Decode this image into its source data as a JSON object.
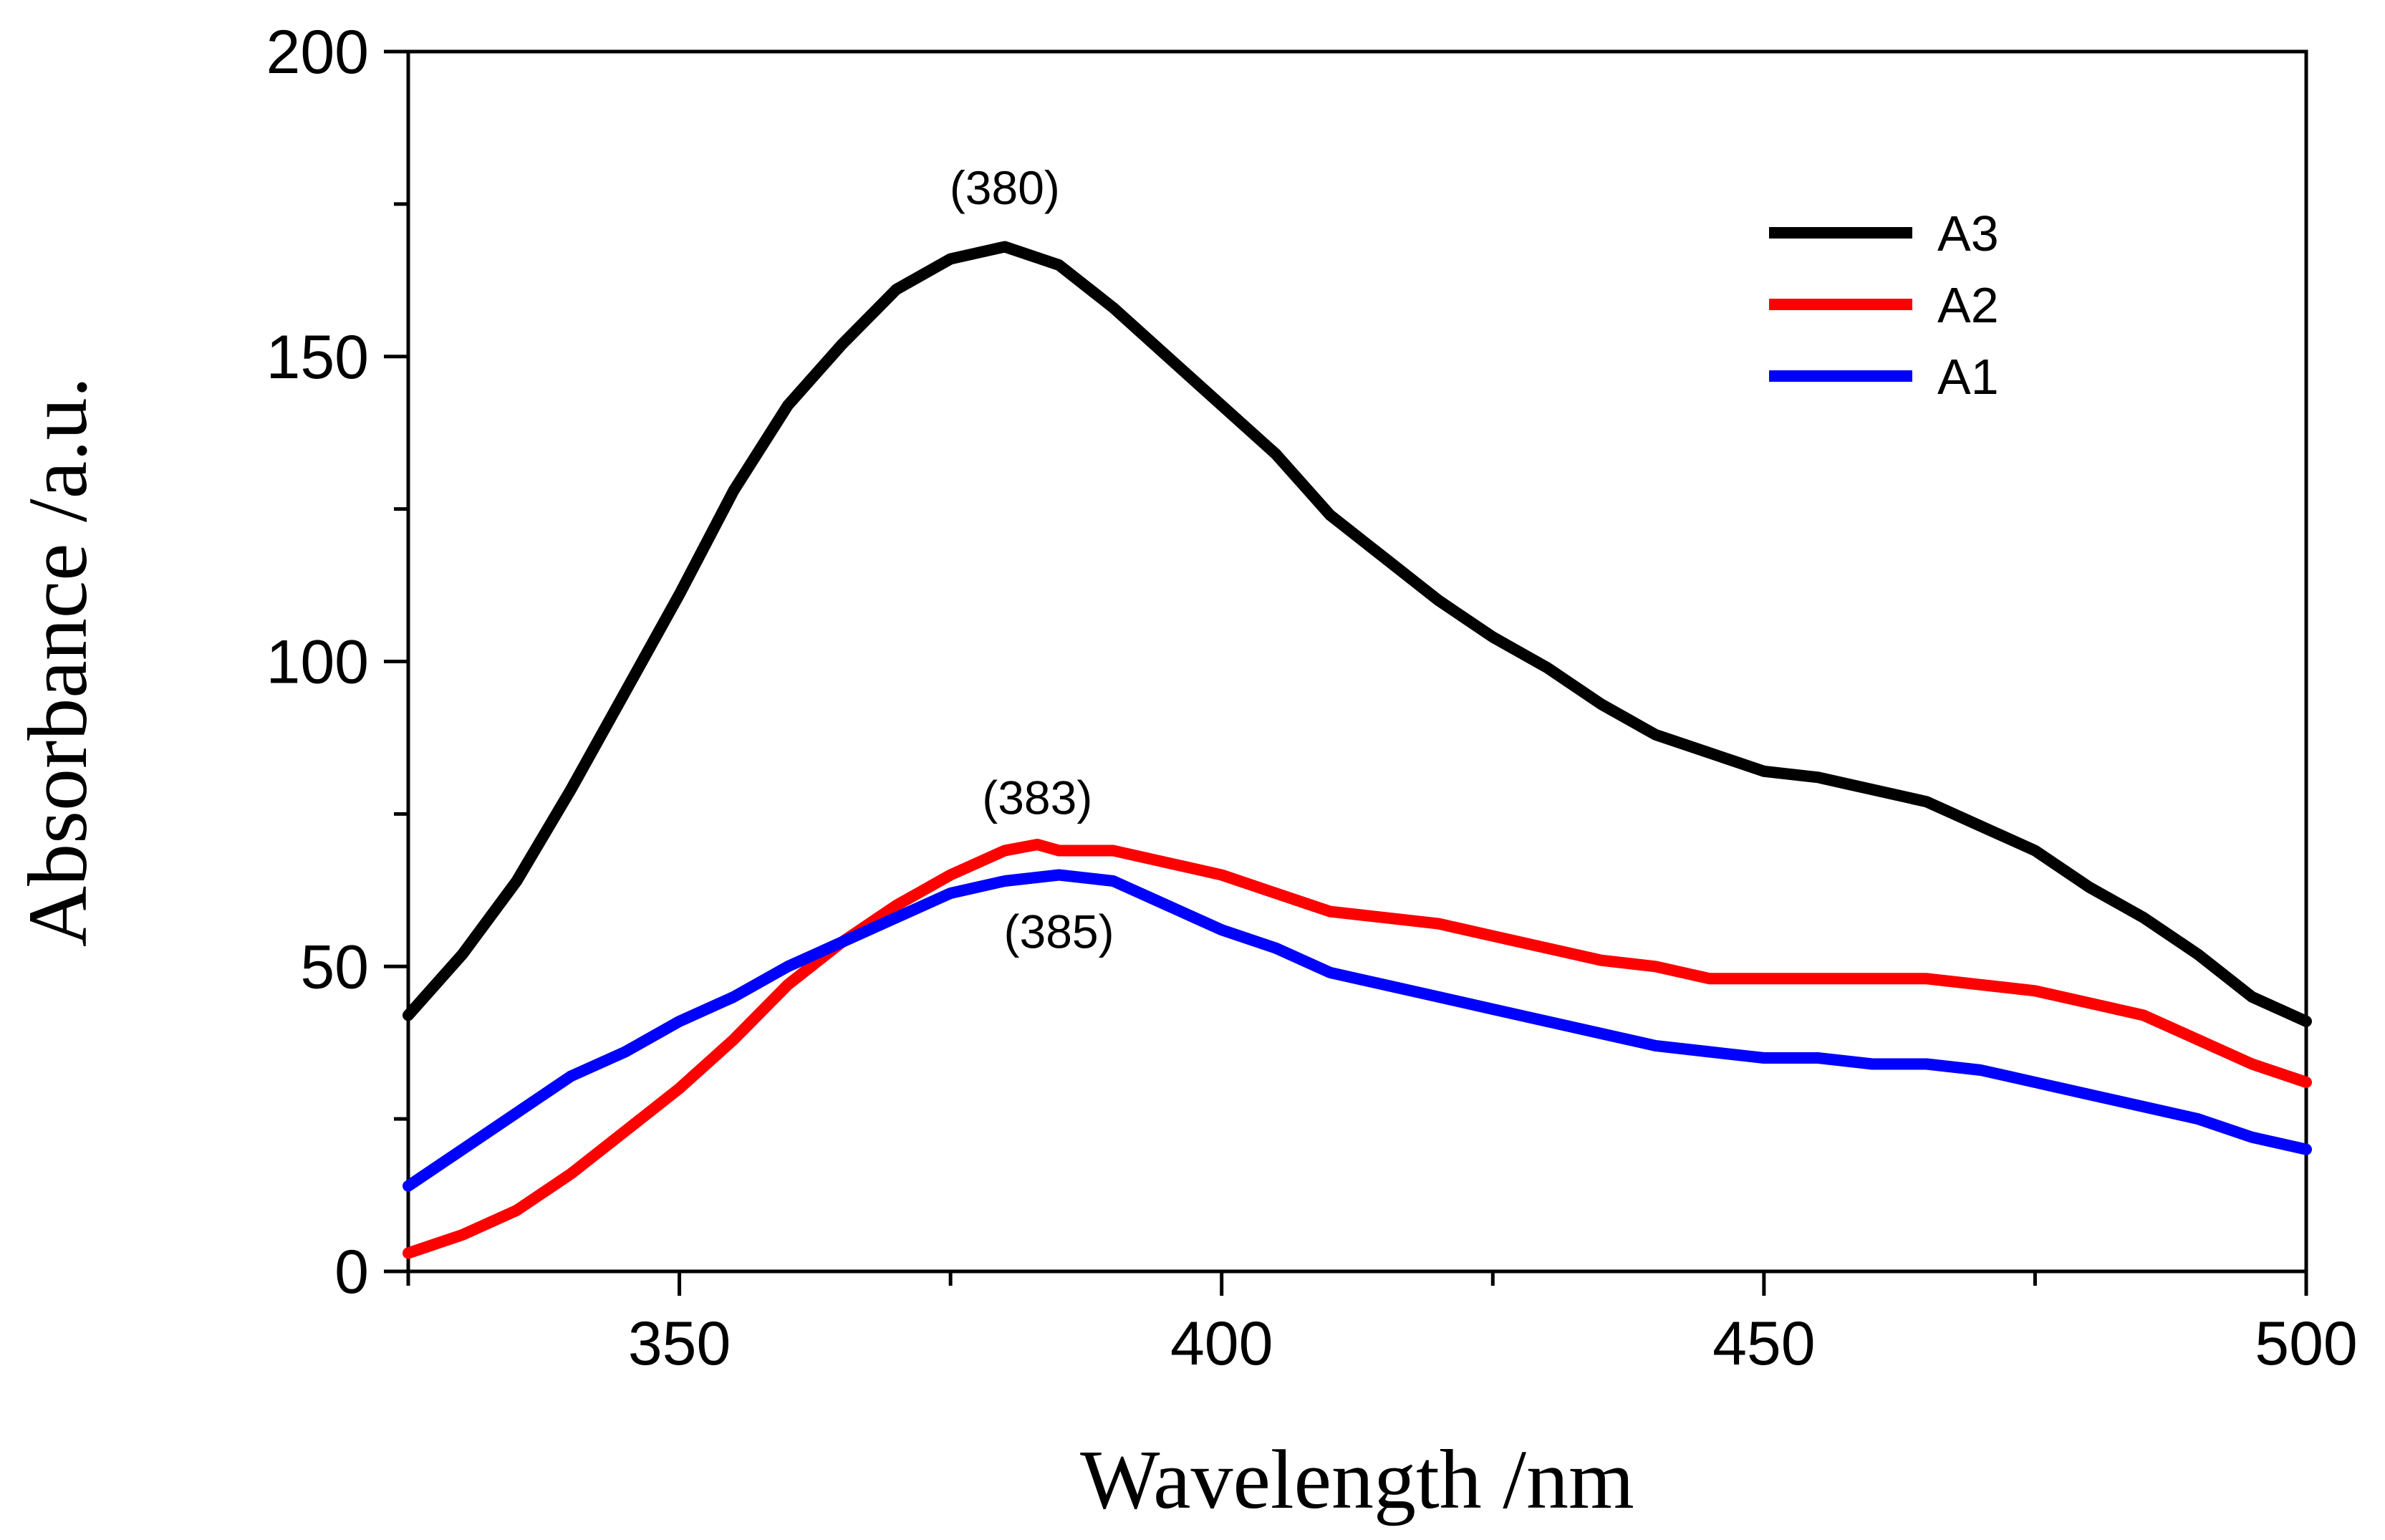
{
  "chart_data": {
    "type": "line",
    "title": "",
    "xlabel": "Wavelength /nm",
    "ylabel": "Absorbance /a.u.",
    "xlim": [
      325,
      500
    ],
    "ylim": [
      0,
      200
    ],
    "x_major_ticks": [
      350,
      400,
      450,
      500
    ],
    "x_minor_ticks": [
      325,
      375,
      425,
      475
    ],
    "y_major_ticks": [
      0,
      50,
      100,
      150,
      200
    ],
    "y_minor_ticks": [
      25,
      75,
      125,
      175
    ],
    "x_tick_labels": [
      "350",
      "400",
      "450",
      "500"
    ],
    "y_tick_labels": [
      "0",
      "50",
      "100",
      "150",
      "200"
    ],
    "legend_position": "top-right",
    "series": [
      {
        "name": "A3",
        "color": "#000000",
        "x": [
          325,
          330,
          335,
          340,
          345,
          350,
          355,
          360,
          365,
          370,
          375,
          380,
          385,
          390,
          395,
          400,
          405,
          410,
          415,
          420,
          425,
          430,
          435,
          440,
          445,
          450,
          455,
          460,
          465,
          470,
          475,
          480,
          485,
          490,
          495,
          500
        ],
        "values": [
          42,
          52,
          64,
          79,
          95,
          111,
          128,
          142,
          152,
          161,
          166,
          168,
          165,
          158,
          150,
          142,
          134,
          124,
          117,
          110,
          104,
          99,
          93,
          88,
          85,
          82,
          81,
          79,
          77,
          73,
          69,
          63,
          58,
          52,
          45,
          41
        ]
      },
      {
        "name": "A2",
        "color": "#ff0000",
        "x": [
          325,
          330,
          335,
          340,
          345,
          350,
          355,
          360,
          365,
          370,
          375,
          380,
          383,
          385,
          390,
          395,
          400,
          405,
          410,
          415,
          420,
          425,
          430,
          435,
          440,
          445,
          450,
          455,
          460,
          465,
          470,
          475,
          480,
          485,
          490,
          495,
          500
        ],
        "values": [
          3,
          6,
          10,
          16,
          23,
          30,
          38,
          47,
          54,
          60,
          65,
          69,
          70,
          69,
          69,
          67,
          65,
          62,
          59,
          58,
          57,
          55,
          53,
          51,
          50,
          48,
          48,
          48,
          48,
          48,
          47,
          46,
          44,
          42,
          38,
          34,
          31
        ]
      },
      {
        "name": "A1",
        "color": "#0000ff",
        "x": [
          325,
          330,
          335,
          340,
          345,
          350,
          355,
          360,
          365,
          370,
          375,
          380,
          385,
          390,
          395,
          400,
          405,
          410,
          415,
          420,
          425,
          430,
          435,
          440,
          445,
          450,
          455,
          460,
          465,
          470,
          475,
          480,
          485,
          490,
          495,
          500
        ],
        "values": [
          14,
          20,
          26,
          32,
          36,
          41,
          45,
          50,
          54,
          58,
          62,
          64,
          65,
          64,
          60,
          56,
          53,
          49,
          47,
          45,
          43,
          41,
          39,
          37,
          36,
          35,
          35,
          34,
          34,
          33,
          31,
          29,
          27,
          25,
          22,
          20
        ]
      }
    ],
    "annotations": [
      {
        "text": "(380)",
        "x": 380,
        "y": 175
      },
      {
        "text": "(383)",
        "x": 383,
        "y": 75
      },
      {
        "text": "(385)",
        "x": 385,
        "y": 53
      }
    ]
  }
}
